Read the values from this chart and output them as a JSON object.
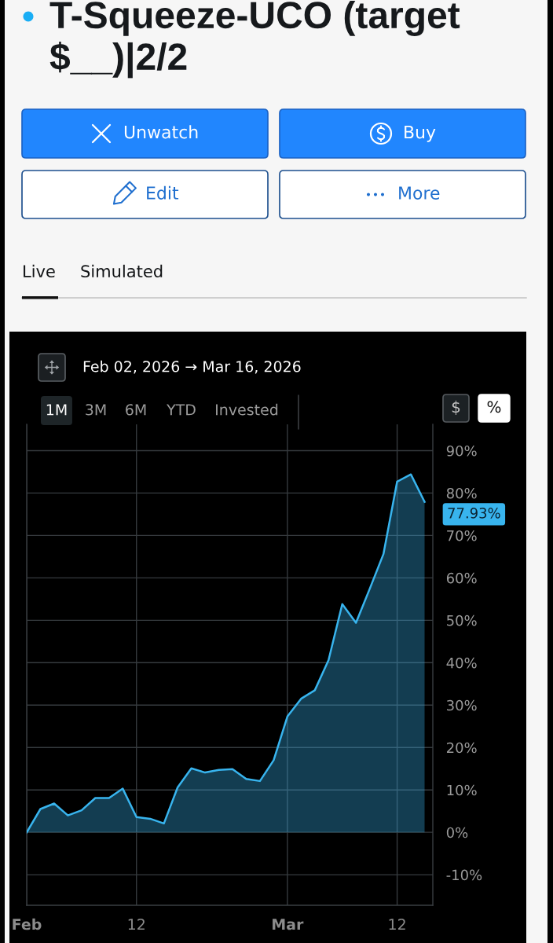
{
  "chart_data": {
    "type": "area",
    "title": "T-Squeeze-UCO (target $__)|2/2",
    "subtitle": "Feb 02, 2026 → Mar 16, 2026",
    "categories": [
      "Feb",
      null,
      null,
      null,
      null,
      null,
      null,
      null,
      "12",
      null,
      null,
      null,
      null,
      null,
      null,
      null,
      null,
      null,
      null,
      "Mar",
      null,
      null,
      null,
      null,
      null,
      null,
      null,
      "12",
      null,
      null
    ],
    "values": [
      0,
      5.5,
      6.8,
      4.0,
      5.2,
      8.1,
      8.1,
      10.3,
      3.6,
      3.2,
      2.1,
      10.6,
      15.1,
      14.1,
      14.7,
      14.9,
      12.6,
      12.1,
      17.0,
      27.3,
      31.5,
      33.5,
      40.6,
      53.8,
      49.4,
      57.4,
      65.6,
      82.7,
      84.4,
      77.93
    ],
    "color": "#38b4ee",
    "ylim": [
      -17.2,
      96.2
    ],
    "yticks": [
      {
        "value": -10,
        "label": "-10%"
      },
      {
        "value": 0,
        "label": "0%"
      },
      {
        "value": 10,
        "label": "10%"
      },
      {
        "value": 20,
        "label": "20%"
      },
      {
        "value": 30,
        "label": "30%"
      },
      {
        "value": 40,
        "label": "40%"
      },
      {
        "value": 50,
        "label": "50%"
      },
      {
        "value": 60,
        "label": "60%"
      },
      {
        "value": 70,
        "label": "70%"
      },
      {
        "value": 80,
        "label": "80%"
      },
      {
        "value": 90,
        "label": "90%"
      }
    ],
    "grid": true,
    "annotations": [
      "Unwatch",
      "Buy",
      "Edit",
      "More",
      "Live",
      "Simulated",
      "1M",
      "3M",
      "6M",
      "YTD",
      "Invested",
      "$",
      "%",
      "77.93%"
    ]
  }
}
